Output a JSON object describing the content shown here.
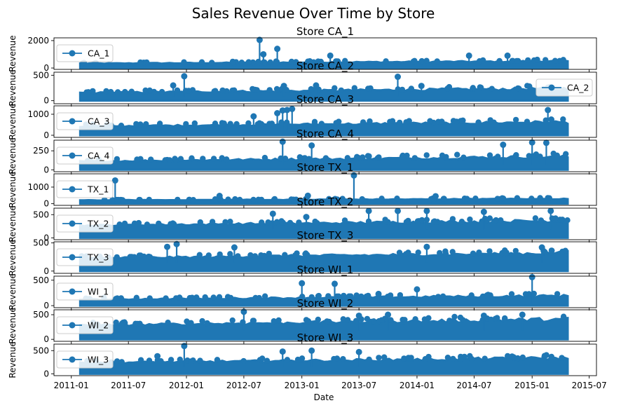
{
  "figure": {
    "title": "Sales Revenue Over Time by Store",
    "xlabel": "Date",
    "x_ticks": [
      "2011-01",
      "2011-07",
      "2012-01",
      "2012-07",
      "2013-01",
      "2013-07",
      "2014-01",
      "2014-07",
      "2015-01",
      "2015-07"
    ]
  },
  "chart_data": {
    "type": "line",
    "x_range": [
      "2010-11-07",
      "2015-07-24"
    ],
    "data_x_range": [
      "2011-01-29",
      "2015-04-24"
    ],
    "marker": "circle",
    "color": "#1f77b4",
    "grid": false,
    "ylabel": "Revenue",
    "panels": [
      {
        "title": "Store CA_1",
        "series": "CA_1",
        "legend": "upper left",
        "ylim": [
          -100,
          2200
        ],
        "y_ticks": [
          0,
          2000
        ],
        "base": [
          180,
          520
        ],
        "spikes": [
          [
            "2012-08-20",
            2050
          ],
          [
            "2012-10-15",
            1400
          ],
          [
            "2012-09-01",
            1000
          ],
          [
            "2014-06-15",
            900
          ],
          [
            "2013-04-01",
            900
          ],
          [
            "2014-10-15",
            900
          ]
        ]
      },
      {
        "title": "Store CA_2",
        "series": "CA_2",
        "legend": "right",
        "ylim": [
          -60,
          560
        ],
        "y_ticks": [
          0,
          500
        ],
        "base": [
          80,
          250
        ],
        "spikes": [
          [
            "2011-12-25",
            480
          ],
          [
            "2013-11-01",
            470
          ],
          [
            "2011-11-20",
            300
          ],
          [
            "2012-11-05",
            290
          ],
          [
            "2013-02-15",
            300
          ],
          [
            "2014-01-15",
            290
          ]
        ]
      },
      {
        "title": "Store CA_3",
        "series": "CA_3",
        "legend": "upper left",
        "ylim": [
          -100,
          1400
        ],
        "y_ticks": [
          0,
          1000
        ],
        "base": [
          250,
          650
        ],
        "spikes": [
          [
            "2012-12-01",
            1250
          ],
          [
            "2012-11-15",
            1200
          ],
          [
            "2012-11-01",
            1180
          ],
          [
            "2012-10-15",
            1050
          ],
          [
            "2015-02-20",
            1200
          ],
          [
            "2012-08-01",
            900
          ]
        ]
      },
      {
        "title": "Store CA_4",
        "series": "CA_4",
        "legend": "upper left",
        "ylim": [
          -25,
          390
        ],
        "y_ticks": [
          0,
          250
        ],
        "base": [
          60,
          180
        ],
        "spikes": [
          [
            "2012-11-01",
            370
          ],
          [
            "2015-01-01",
            360
          ],
          [
            "2015-02-15",
            355
          ],
          [
            "2013-02-01",
            320
          ],
          [
            "2014-10-01",
            330
          ]
        ]
      },
      {
        "title": "Store TX_1",
        "series": "TX_1",
        "legend": "upper left",
        "ylim": [
          -100,
          1800
        ],
        "y_ticks": [
          0,
          1000
        ],
        "base": [
          130,
          300
        ],
        "spikes": [
          [
            "2013-06-15",
            1700
          ],
          [
            "2011-05-20",
            1400
          ],
          [
            "2013-01-20",
            480
          ],
          [
            "2012-04-15",
            470
          ],
          [
            "2014-03-01",
            450
          ]
        ]
      },
      {
        "title": "Store TX_2",
        "series": "TX_2",
        "legend": "upper left",
        "ylim": [
          -40,
          640
        ],
        "y_ticks": [
          0,
          500
        ],
        "base": [
          180,
          380
        ],
        "spikes": [
          [
            "2012-10-01",
            520
          ],
          [
            "2013-08-01",
            580
          ],
          [
            "2013-11-01",
            580
          ],
          [
            "2014-02-01",
            580
          ],
          [
            "2014-08-01",
            560
          ],
          [
            "2015-03-01",
            580
          ],
          [
            "2013-01-15",
            450
          ]
        ]
      },
      {
        "title": "Store TX_3",
        "series": "TX_3",
        "legend": "upper left",
        "ylim": [
          -40,
          520
        ],
        "y_ticks": [
          0,
          500
        ],
        "base": [
          150,
          330
        ],
        "spikes": [
          [
            "2011-12-01",
            480
          ],
          [
            "2011-11-01",
            430
          ],
          [
            "2012-06-01",
            420
          ],
          [
            "2014-02-01",
            430
          ],
          [
            "2015-02-01",
            420
          ]
        ]
      },
      {
        "title": "Store WI_1",
        "series": "WI_1",
        "legend": "upper left",
        "ylim": [
          -40,
          580
        ],
        "y_ticks": [
          0,
          500
        ],
        "base": [
          60,
          200
        ],
        "spikes": [
          [
            "2013-01-01",
            440
          ],
          [
            "2013-04-15",
            430
          ],
          [
            "2015-01-01",
            560
          ],
          [
            "2014-01-01",
            320
          ],
          [
            "2013-09-01",
            230
          ]
        ]
      },
      {
        "title": "Store WI_2",
        "series": "WI_2",
        "legend": "upper left",
        "ylim": [
          -40,
          600
        ],
        "y_ticks": [
          0,
          500
        ],
        "base": [
          180,
          420
        ],
        "spikes": [
          [
            "2012-07-01",
            560
          ],
          [
            "2013-07-01",
            480
          ],
          [
            "2013-10-01",
            500
          ],
          [
            "2014-08-01",
            480
          ],
          [
            "2014-12-01",
            500
          ]
        ]
      },
      {
        "title": "Store WI_3",
        "series": "WI_3",
        "legend": "upper left",
        "ylim": [
          -40,
          640
        ],
        "y_ticks": [
          0,
          500
        ],
        "base": [
          150,
          350
        ],
        "spikes": [
          [
            "2011-12-25",
            600
          ],
          [
            "2012-11-01",
            480
          ],
          [
            "2013-02-01",
            500
          ],
          [
            "2013-07-01",
            470
          ],
          [
            "2011-10-01",
            380
          ]
        ]
      }
    ]
  }
}
